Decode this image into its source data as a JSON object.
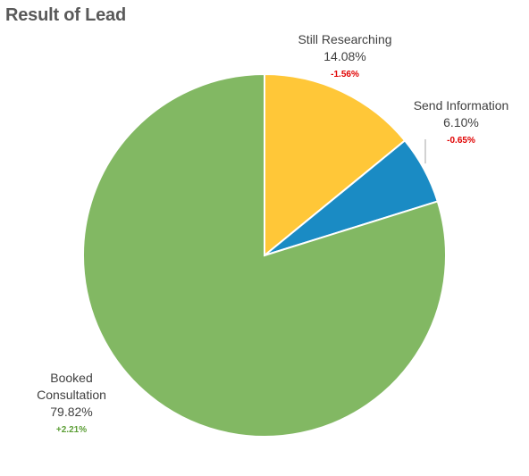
{
  "chart_data": {
    "type": "pie",
    "title": "Result of Lead",
    "start_angle_deg": 0,
    "direction": "clockwise",
    "slices": [
      {
        "name": "Still Researching",
        "name_lines": [
          "Still Researching"
        ],
        "value": 14.08,
        "value_label": "14.08%",
        "delta": "-1.56%",
        "delta_color": "#e00000",
        "color": "#ffc738"
      },
      {
        "name": "Send Information",
        "name_lines": [
          "Send Information"
        ],
        "value": 6.1,
        "value_label": "6.10%",
        "delta": "-0.65%",
        "delta_color": "#e00000",
        "color": "#1a8bc4"
      },
      {
        "name": "Booked Consultation",
        "name_lines": [
          "Booked",
          "Consultation"
        ],
        "value": 79.82,
        "value_label": "79.82%",
        "delta": "+2.21%",
        "delta_color": "#5b9e35",
        "color": "#82b863"
      }
    ]
  }
}
